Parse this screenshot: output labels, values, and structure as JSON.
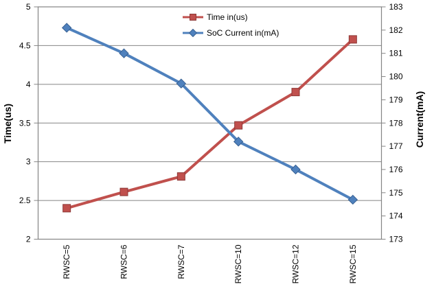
{
  "chart_data": {
    "type": "line",
    "title": "",
    "categories": [
      "RWSC=5",
      "RWSC=6",
      "RWSC=7",
      "RWSC=10",
      "RWSC=12",
      "RWSC=15"
    ],
    "series": [
      {
        "name": "Time in(us)",
        "axis": "left",
        "color": "#C0504D",
        "marker_border": "#8C3836",
        "marker": "square",
        "values": [
          2.4,
          2.61,
          2.81,
          3.47,
          3.9,
          4.58
        ]
      },
      {
        "name": "SoC Current in(mA)",
        "axis": "right",
        "color": "#4F81BD",
        "marker_border": "#376092",
        "marker": "diamond",
        "values": [
          182.1,
          181.0,
          179.7,
          177.2,
          176.0,
          174.7
        ]
      }
    ],
    "left_axis": {
      "label": "Time(us)",
      "min": 2,
      "max": 5,
      "ticks": [
        "5",
        "4.5",
        "4",
        "3.5",
        "3",
        "2.5",
        "2"
      ]
    },
    "right_axis": {
      "label": "Current(mA)",
      "min": 173,
      "max": 183,
      "ticks": [
        "183",
        "182",
        "181",
        "180",
        "179",
        "178",
        "177",
        "176",
        "175",
        "174",
        "173"
      ]
    },
    "grid": true,
    "legend_position": "top-center",
    "plot_colors": {
      "grid": "#848484",
      "axis": "#848484",
      "tick_text": "#000000",
      "background": "#FFFFFF"
    }
  }
}
